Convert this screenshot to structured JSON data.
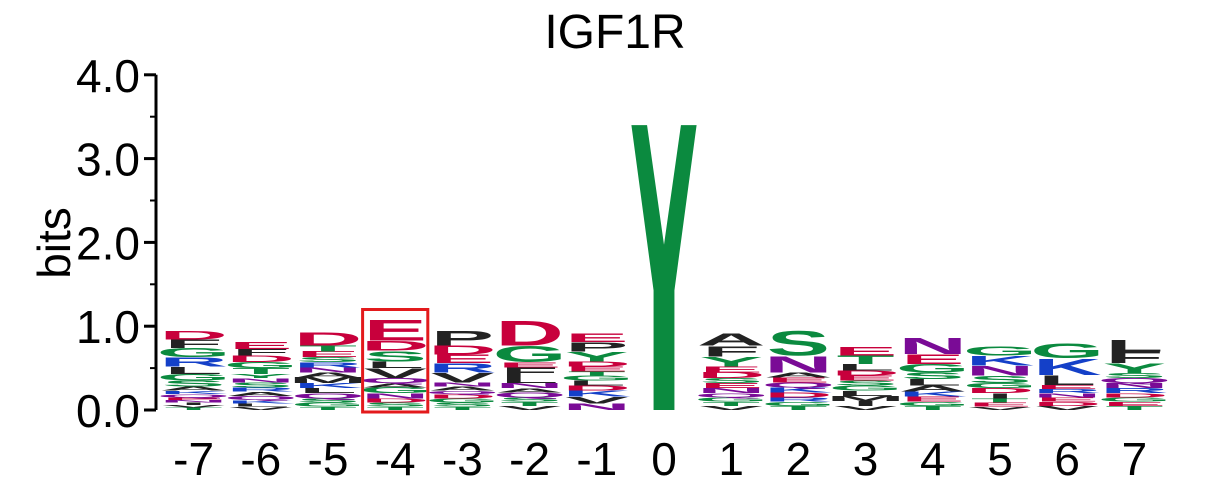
{
  "chart_data": {
    "type": "sequence-logo",
    "title": "IGF1R",
    "ylabel": "bits",
    "ylim": [
      0,
      4
    ],
    "yticks": [
      "0.0",
      "1.0",
      "2.0",
      "3.0",
      "4.0"
    ],
    "positions": [
      "-7",
      "-6",
      "-5",
      "-4",
      "-3",
      "-2",
      "-1",
      "0",
      "1",
      "2",
      "3",
      "4",
      "5",
      "6",
      "7"
    ],
    "highlighted_position": "-4",
    "highlight_color": "#e31a1c",
    "colors": {
      "acidic": "#c8003c",
      "hydrophobic": "#222222",
      "polar": "#0b8a3f",
      "basic": "#1440c8",
      "amide": "#7a0b96",
      "light_blue": "#7fa7e6"
    },
    "columns": [
      {
        "position": "-7",
        "letters": [
          [
            "T",
            0.03
          ],
          [
            "V",
            0.03
          ],
          [
            "I",
            0.03
          ],
          [
            "N",
            0.03
          ],
          [
            "E",
            0.03
          ],
          [
            "Q",
            0.04
          ],
          [
            "K",
            0.04
          ],
          [
            "A",
            0.05
          ],
          [
            "S",
            0.07
          ],
          [
            "G",
            0.08
          ],
          [
            "L",
            0.09
          ],
          [
            "R",
            0.11
          ],
          [
            "G",
            0.11
          ],
          [
            "F",
            0.1
          ],
          [
            "D",
            0.1
          ]
        ]
      },
      {
        "position": "-6",
        "letters": [
          [
            "V",
            0.04
          ],
          [
            "L",
            0.04
          ],
          [
            "K",
            0.04
          ],
          [
            "Q",
            0.05
          ],
          [
            "A",
            0.05
          ],
          [
            "R",
            0.05
          ],
          [
            "S",
            0.06
          ],
          [
            "N",
            0.05
          ],
          [
            "Y",
            0.05
          ],
          [
            "T",
            0.07
          ],
          [
            "G",
            0.07
          ],
          [
            "D",
            0.08
          ],
          [
            "F",
            0.08
          ],
          [
            "E",
            0.09
          ]
        ]
      },
      {
        "position": "-5",
        "letters": [
          [
            "T",
            0.04
          ],
          [
            "G",
            0.05
          ],
          [
            "S",
            0.05
          ],
          [
            "Q",
            0.06
          ],
          [
            "L",
            0.06
          ],
          [
            "K",
            0.06
          ],
          [
            "M",
            0.07
          ],
          [
            "A",
            0.06
          ],
          [
            "N",
            0.06
          ],
          [
            "R",
            0.06
          ],
          [
            "S",
            0.06
          ],
          [
            "E",
            0.07
          ],
          [
            "T",
            0.07
          ],
          [
            "D",
            0.16
          ]
        ]
      },
      {
        "position": "-4",
        "letters": [
          [
            "T",
            0.04
          ],
          [
            "S",
            0.05
          ],
          [
            "D",
            0.05
          ],
          [
            "N",
            0.06
          ],
          [
            "G",
            0.07
          ],
          [
            "A",
            0.05
          ],
          [
            "Q",
            0.06
          ],
          [
            "V",
            0.12
          ],
          [
            "L",
            0.08
          ],
          [
            "S",
            0.13
          ],
          [
            "D",
            0.12
          ],
          [
            "E",
            0.25
          ]
        ]
      },
      {
        "position": "-3",
        "letters": [
          [
            "T",
            0.04
          ],
          [
            "S",
            0.05
          ],
          [
            "G",
            0.05
          ],
          [
            "D",
            0.05
          ],
          [
            "Q",
            0.04
          ],
          [
            "A",
            0.05
          ],
          [
            "N",
            0.05
          ],
          [
            "V",
            0.12
          ],
          [
            "R",
            0.11
          ],
          [
            "E",
            0.1
          ],
          [
            "D",
            0.11
          ],
          [
            "P",
            0.18
          ]
        ]
      },
      {
        "position": "-2",
        "letters": [
          [
            "V",
            0.05
          ],
          [
            "T",
            0.05
          ],
          [
            "S",
            0.05
          ],
          [
            "Q",
            0.06
          ],
          [
            "A",
            0.05
          ],
          [
            "N",
            0.06
          ],
          [
            "L",
            0.08
          ],
          [
            "F",
            0.11
          ],
          [
            "E",
            0.06
          ],
          [
            "G",
            0.2
          ],
          [
            "D",
            0.3
          ]
        ]
      },
      {
        "position": "-1",
        "letters": [
          [
            "N",
            0.08
          ],
          [
            "V",
            0.08
          ],
          [
            "K",
            0.07
          ],
          [
            "D",
            0.06
          ],
          [
            "L",
            0.06
          ],
          [
            "G",
            0.06
          ],
          [
            "T",
            0.05
          ],
          [
            "E",
            0.06
          ],
          [
            "D",
            0.06
          ],
          [
            "Y",
            0.12
          ],
          [
            "P",
            0.11
          ],
          [
            "E",
            0.1
          ]
        ]
      },
      {
        "position": "0",
        "letters": [
          [
            "Y",
            3.4
          ]
        ]
      },
      {
        "position": "1",
        "letters": [
          [
            "V",
            0.05
          ],
          [
            "T",
            0.05
          ],
          [
            "G",
            0.05
          ],
          [
            "Q",
            0.05
          ],
          [
            "N",
            0.06
          ],
          [
            "E",
            0.06
          ],
          [
            "S",
            0.06
          ],
          [
            "D",
            0.07
          ],
          [
            "E",
            0.07
          ],
          [
            "Y",
            0.12
          ],
          [
            "F",
            0.13
          ],
          [
            "A",
            0.15
          ]
        ]
      },
      {
        "position": "2",
        "letters": [
          [
            "T",
            0.05
          ],
          [
            "G",
            0.05
          ],
          [
            "R",
            0.05
          ],
          [
            "D",
            0.06
          ],
          [
            "K",
            0.06
          ],
          [
            "Q",
            0.06
          ],
          [
            "E",
            0.06
          ],
          [
            "A",
            0.06
          ],
          [
            "N",
            0.2
          ],
          [
            "S",
            0.3
          ]
        ]
      },
      {
        "position": "3",
        "letters": [
          [
            "V",
            0.05
          ],
          [
            "I",
            0.06
          ],
          [
            "M",
            0.06
          ],
          [
            "L",
            0.06
          ],
          [
            "G",
            0.06
          ],
          [
            "S",
            0.06
          ],
          [
            "E",
            0.06
          ],
          [
            "D",
            0.06
          ],
          [
            "L",
            0.08
          ],
          [
            "T",
            0.1
          ],
          [
            "E",
            0.1
          ]
        ]
      },
      {
        "position": "4",
        "letters": [
          [
            "T",
            0.05
          ],
          [
            "G",
            0.05
          ],
          [
            "E",
            0.06
          ],
          [
            "K",
            0.06
          ],
          [
            "A",
            0.07
          ],
          [
            "L",
            0.08
          ],
          [
            "S",
            0.08
          ],
          [
            "G",
            0.1
          ],
          [
            "E",
            0.12
          ],
          [
            "N",
            0.2
          ]
        ]
      },
      {
        "position": "5",
        "letters": [
          [
            "V",
            0.04
          ],
          [
            "E",
            0.05
          ],
          [
            "T",
            0.05
          ],
          [
            "I",
            0.06
          ],
          [
            "D",
            0.06
          ],
          [
            "G",
            0.06
          ],
          [
            "S",
            0.09
          ],
          [
            "N",
            0.12
          ],
          [
            "K",
            0.12
          ],
          [
            "G",
            0.11
          ]
        ]
      },
      {
        "position": "6",
        "letters": [
          [
            "V",
            0.05
          ],
          [
            "D",
            0.05
          ],
          [
            "E",
            0.05
          ],
          [
            "N",
            0.05
          ],
          [
            "R",
            0.05
          ],
          [
            "E",
            0.05
          ],
          [
            "L",
            0.12
          ],
          [
            "K",
            0.2
          ],
          [
            "G",
            0.18
          ]
        ]
      },
      {
        "position": "7",
        "letters": [
          [
            "T",
            0.05
          ],
          [
            "E",
            0.05
          ],
          [
            "G",
            0.05
          ],
          [
            "D",
            0.05
          ],
          [
            "R",
            0.06
          ],
          [
            "N",
            0.06
          ],
          [
            "Q",
            0.06
          ],
          [
            "S",
            0.06
          ],
          [
            "Y",
            0.12
          ],
          [
            "F",
            0.14
          ],
          [
            "L",
            0.14
          ]
        ]
      }
    ]
  }
}
